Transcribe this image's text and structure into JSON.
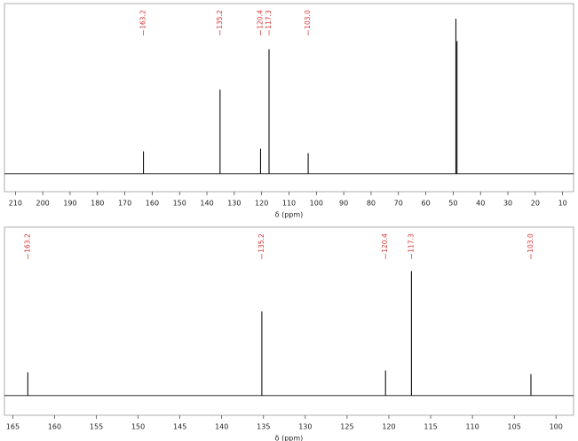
{
  "chart_data": [
    {
      "type": "spectrum",
      "xlabel": "δ (ppm)",
      "x": [
        163.2,
        135.2,
        120.4,
        117.3,
        103.0,
        49.0,
        48.6
      ],
      "peak_labels": [
        "163.2",
        "135.2",
        "120.4",
        "117.3",
        "103.0",
        null,
        null
      ],
      "values": [
        25,
        94,
        28,
        139,
        23,
        173,
        148
      ],
      "color": "#111111",
      "label_color": "#d33333",
      "xlim": [
        214,
        6
      ],
      "ylim": [
        -20,
        190
      ],
      "xticks": [
        210,
        200,
        190,
        180,
        170,
        160,
        150,
        140,
        130,
        120,
        110,
        100,
        90,
        80,
        70,
        60,
        50,
        40,
        30,
        20,
        10
      ]
    },
    {
      "type": "spectrum",
      "xlabel": "δ (ppm)",
      "x": [
        163.2,
        135.2,
        120.4,
        117.3,
        103.0
      ],
      "peak_labels": [
        "163.2",
        "135.2",
        "120.4",
        "117.3",
        "103.0"
      ],
      "values": [
        26,
        94,
        28,
        139,
        24
      ],
      "color": "#111111",
      "label_color": "#d33333",
      "xlim": [
        166,
        97.9
      ],
      "ylim": [
        -22,
        188
      ],
      "xticks": [
        165,
        160,
        155,
        150,
        145,
        140,
        135,
        130,
        125,
        120,
        115,
        110,
        105,
        100
      ]
    }
  ]
}
